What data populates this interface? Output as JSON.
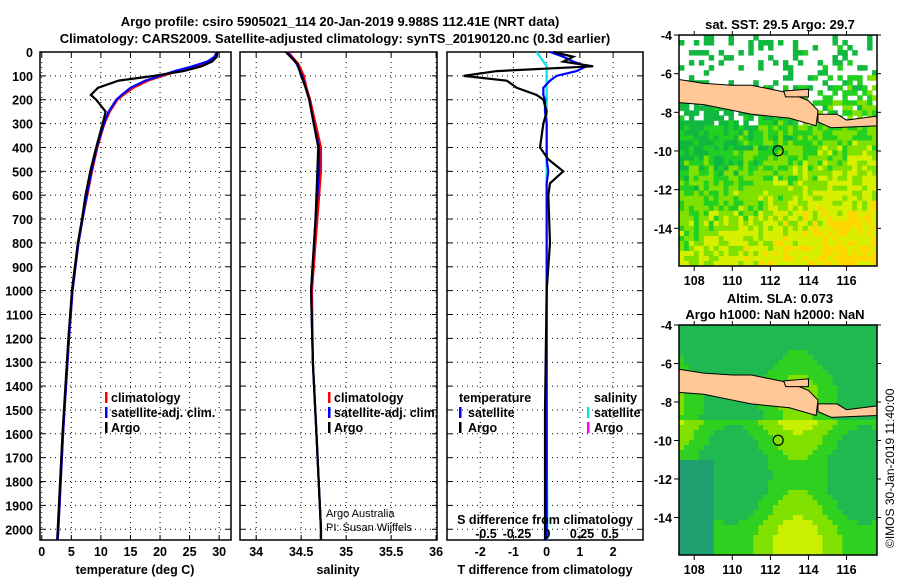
{
  "title_line1": "Argo profile: csiro 5905021_114 20-Jan-2019 9.988S 112.41E (NRT data)",
  "title_line2": "Climatology: CARS2009. Satellite-adjusted climatology: synTS_20190120.nc (0.3d earlier)",
  "credit": "©IMOS 30-Jan-2019 11:40:00",
  "colors": {
    "climatology": "#ff0000",
    "satellite": "#0000ff",
    "argo": "#000000",
    "sal_satellite": "#00e5ee",
    "sal_argo": "#ff00ff",
    "land": "#ffc896"
  },
  "chart_data": [
    {
      "type": "line",
      "name": "temperature",
      "xlabel": "temperature (deg C)",
      "ylabel": "depth",
      "xlim": [
        -0.3,
        32
      ],
      "ylim": [
        2045,
        0
      ],
      "xticks": [
        0,
        5,
        10,
        15,
        20,
        25,
        30
      ],
      "yticks": [
        0,
        100,
        200,
        300,
        400,
        500,
        600,
        700,
        800,
        900,
        1000,
        1100,
        1200,
        1300,
        1400,
        1500,
        1600,
        1700,
        1800,
        1900,
        2000
      ],
      "legend": [
        "climatology",
        "satellite-adj. clim.",
        "Argo"
      ],
      "depth": [
        0,
        20,
        40,
        60,
        80,
        100,
        120,
        150,
        180,
        200,
        250,
        300,
        400,
        500,
        600,
        700,
        800,
        900,
        1000,
        1200,
        1400,
        1600,
        1800,
        2000,
        2045
      ],
      "series": [
        {
          "name": "climatology",
          "values": [
            29.5,
            29.3,
            28.5,
            26,
            23,
            20.5,
            18,
            15.5,
            13.8,
            12.8,
            11.5,
            10.6,
            9.4,
            8.5,
            7.7,
            6.9,
            6.2,
            5.7,
            5.2,
            4.6,
            4.1,
            3.6,
            3.2,
            2.8,
            2.7
          ]
        },
        {
          "name": "satellite-adj. clim.",
          "values": [
            29.6,
            29.2,
            28,
            25.5,
            22.5,
            20,
            17.5,
            15,
            13.5,
            12.6,
            11.3,
            10.5,
            9.3,
            8.4,
            7.6,
            6.9,
            6.2,
            5.7,
            5.2,
            4.6,
            4.1,
            3.6,
            3.2,
            2.8,
            2.7
          ]
        },
        {
          "name": "Argo",
          "values": [
            29.7,
            29.6,
            28.8,
            27,
            24,
            19,
            13,
            9.5,
            8.3,
            9.2,
            10.8,
            10.3,
            9.2,
            8.2,
            7.4,
            6.8,
            6.1,
            5.6,
            5.1,
            4.5,
            4.0,
            3.5,
            3.1,
            2.7,
            2.6
          ]
        }
      ]
    },
    {
      "type": "line",
      "name": "salinity",
      "xlabel": "salinity",
      "xlim": [
        33.82,
        36.01
      ],
      "ylim": [
        2045,
        0
      ],
      "xticks": [
        34,
        34.5,
        35,
        35.5,
        36
      ],
      "legend": [
        "climatology",
        "satellite-adj. clim.",
        "Argo"
      ],
      "annotation": [
        "Argo Australia",
        "PI: Susan Wijffels"
      ],
      "depth": [
        0,
        20,
        50,
        100,
        150,
        200,
        300,
        400,
        500,
        700,
        1000,
        1300,
        1600,
        2000,
        2045
      ],
      "series": [
        {
          "name": "climatology",
          "values": [
            34.36,
            34.4,
            34.47,
            34.53,
            34.56,
            34.6,
            34.66,
            34.72,
            34.72,
            34.68,
            34.62,
            34.63,
            34.67,
            34.72,
            34.72
          ]
        },
        {
          "name": "satellite-adj. clim.",
          "values": [
            34.34,
            34.39,
            34.45,
            34.51,
            34.55,
            34.59,
            34.64,
            34.7,
            34.7,
            34.66,
            34.61,
            34.63,
            34.67,
            34.72,
            34.72
          ]
        },
        {
          "name": "Argo",
          "values": [
            34.33,
            34.38,
            34.46,
            34.5,
            34.55,
            34.59,
            34.64,
            34.69,
            34.68,
            34.66,
            34.61,
            34.63,
            34.67,
            34.72,
            34.72
          ]
        }
      ]
    },
    {
      "type": "line",
      "name": "difference",
      "xlabel": "T difference from climatology",
      "xlabel2": "S difference from climatology",
      "xlim": [
        -3,
        2.9
      ],
      "ylim": [
        2045,
        0
      ],
      "xticks": [
        -2,
        -1,
        0,
        1,
        2
      ],
      "xticks2": [
        "-0.5",
        "-0.25",
        "0",
        "0.25",
        "0.5"
      ],
      "legend_temperature": {
        "title": "temperature",
        "items": [
          "satellite",
          "Argo"
        ]
      },
      "legend_salinity": {
        "title": "salinity",
        "items": [
          "satellite",
          "Argo"
        ]
      },
      "depth": [
        0,
        20,
        40,
        60,
        80,
        100,
        120,
        150,
        180,
        200,
        250,
        300,
        400,
        450,
        500,
        550,
        600,
        800,
        1000,
        1500,
        2000,
        2045
      ],
      "series": [
        {
          "name": "T satellite",
          "values": [
            0.1,
            0.5,
            0.8,
            1.2,
            0.9,
            0.3,
            0.1,
            -0.1,
            -0.1,
            -0.05,
            -0.05,
            0,
            0,
            0,
            0.05,
            0,
            0,
            0,
            0,
            0,
            0,
            0
          ]
        },
        {
          "name": "T Argo",
          "values": [
            0.2,
            0.8,
            0.5,
            1.4,
            -1.5,
            -2.5,
            -1.2,
            -0.9,
            -0.3,
            -0.1,
            0,
            -0.1,
            -0.2,
            0.05,
            0.5,
            0.1,
            0.05,
            0.1,
            0,
            -0.05,
            -0.05,
            -0.05
          ]
        },
        {
          "name": "S satellite",
          "values": [
            -0.3,
            -0.2,
            -0.1,
            0,
            0,
            0,
            0,
            0,
            0,
            0,
            0,
            0,
            0,
            0,
            0,
            0,
            0,
            0,
            0,
            0,
            0.02,
            0.02
          ]
        }
      ]
    },
    {
      "type": "heatmap",
      "name": "sst_map",
      "title": "sat. SST: 29.5 Argo: 29.7",
      "xlim": [
        107.2,
        117.6
      ],
      "ylim": [
        -15.95,
        -4
      ],
      "xticks": [
        108,
        110,
        112,
        114,
        116
      ],
      "yticks": [
        -4,
        -6,
        -8,
        -10,
        -12,
        -14
      ],
      "argo_position": {
        "lon": 112.41,
        "lat": -9.988
      }
    },
    {
      "type": "heatmap",
      "name": "sla_map",
      "title": "Altim. SLA: 0.073",
      "subtitle": "Argo h1000: NaN h2000: NaN",
      "xlim": [
        107.2,
        117.6
      ],
      "ylim": [
        -15.95,
        -4
      ],
      "xticks": [
        108,
        110,
        112,
        114,
        116
      ],
      "yticks": [
        -4,
        -6,
        -8,
        -10,
        -12,
        -14
      ],
      "argo_position": {
        "lon": 112.41,
        "lat": -9.988
      }
    }
  ]
}
